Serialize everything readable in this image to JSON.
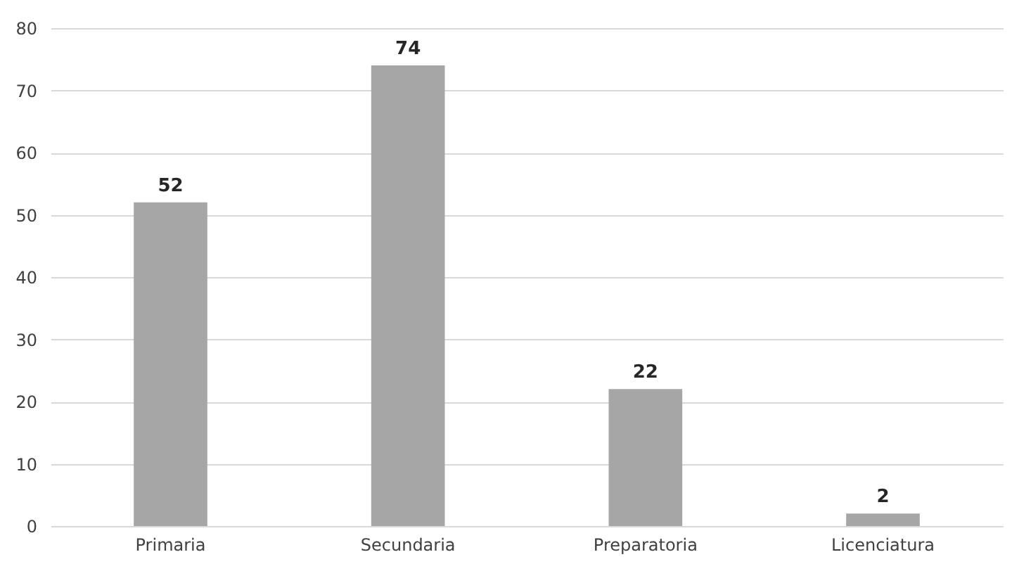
{
  "chart_data": {
    "type": "bar",
    "categories": [
      "Primaria",
      "Secundaria",
      "Preparatoria",
      "Licenciatura"
    ],
    "values": [
      52,
      74,
      22,
      2
    ],
    "color": "#a6a6a6",
    "ylim": [
      0,
      80
    ],
    "yticks": [
      0,
      10,
      20,
      30,
      40,
      50,
      60,
      70,
      80
    ],
    "grid": "y",
    "data_labels": true
  }
}
